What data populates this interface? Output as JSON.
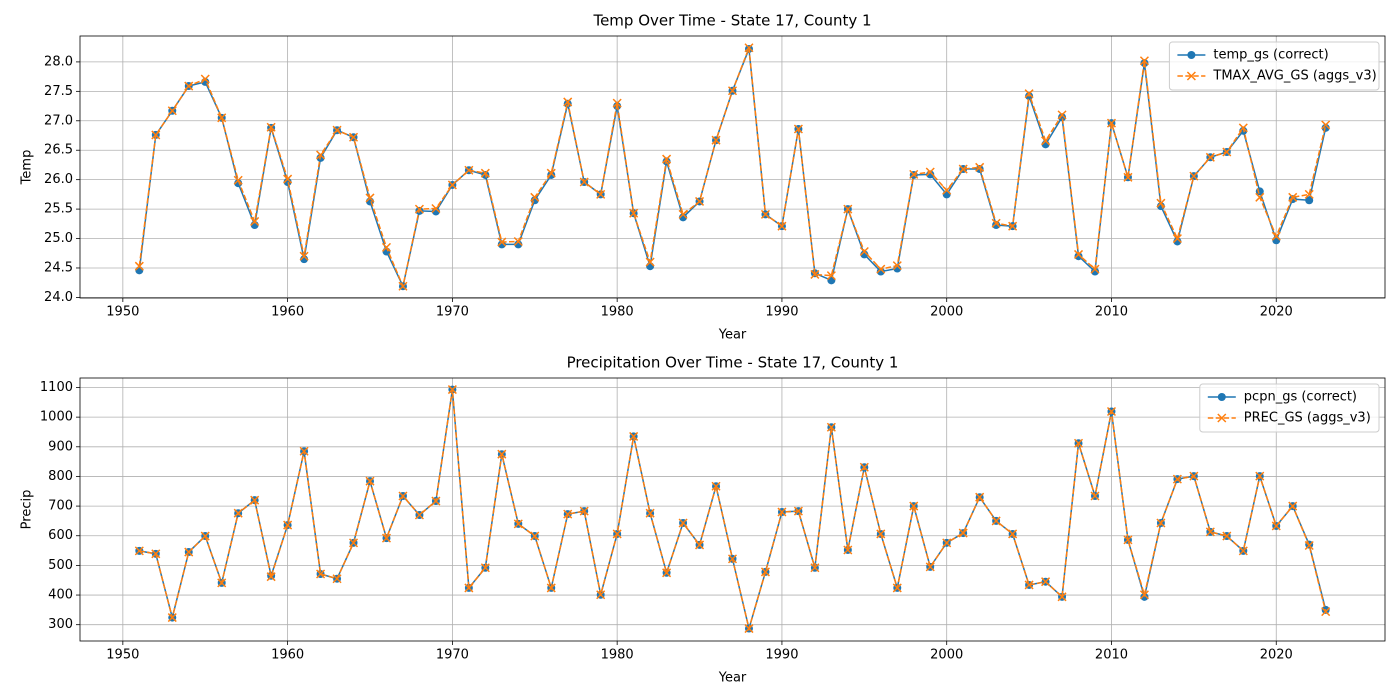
{
  "chart_data": [
    {
      "type": "line",
      "title": "Temp Over Time - State 17, County 1",
      "xlabel": "Year",
      "ylabel": "Temp",
      "x": [
        1951,
        1952,
        1953,
        1954,
        1955,
        1956,
        1957,
        1958,
        1959,
        1960,
        1961,
        1962,
        1963,
        1964,
        1965,
        1966,
        1967,
        1968,
        1969,
        1970,
        1971,
        1972,
        1973,
        1974,
        1975,
        1976,
        1977,
        1978,
        1979,
        1980,
        1981,
        1982,
        1983,
        1984,
        1985,
        1986,
        1987,
        1988,
        1989,
        1990,
        1991,
        1992,
        1993,
        1994,
        1995,
        1996,
        1997,
        1998,
        1999,
        2000,
        2001,
        2002,
        2003,
        2004,
        2005,
        2006,
        2007,
        2008,
        2009,
        2010,
        2011,
        2012,
        2013,
        2014,
        2015,
        2016,
        2017,
        2018,
        2019,
        2020,
        2021,
        2022,
        2023
      ],
      "series": [
        {
          "name": "temp_gs (correct)",
          "color": "#1f77b4",
          "marker": "o",
          "linestyle": "solid",
          "values": [
            24.46,
            26.76,
            27.17,
            27.59,
            27.66,
            27.05,
            25.94,
            25.23,
            26.88,
            25.96,
            24.65,
            26.37,
            26.84,
            26.72,
            25.63,
            24.78,
            24.19,
            25.47,
            25.46,
            25.91,
            26.16,
            26.08,
            24.9,
            24.9,
            25.65,
            26.08,
            27.29,
            25.96,
            25.75,
            27.25,
            25.43,
            24.53,
            26.31,
            25.36,
            25.63,
            26.67,
            27.51,
            28.22,
            25.41,
            25.21,
            26.86,
            24.41,
            24.29,
            25.5,
            24.73,
            24.44,
            24.49,
            26.08,
            26.09,
            25.75,
            26.18,
            26.18,
            25.23,
            25.21,
            27.42,
            26.6,
            27.06,
            24.7,
            24.44,
            26.96,
            26.04,
            27.98,
            25.55,
            24.95,
            26.06,
            26.38,
            26.47,
            26.83,
            25.8,
            24.97,
            25.67,
            25.65,
            26.88
          ]
        },
        {
          "name": "TMAX_AVG_GS (aggs_v3)",
          "color": "#ff7f0e",
          "marker": "x",
          "linestyle": "dashed",
          "values": [
            24.53,
            26.76,
            27.17,
            27.59,
            27.71,
            27.05,
            25.99,
            25.29,
            26.89,
            26.01,
            24.7,
            26.42,
            26.84,
            26.72,
            25.69,
            24.85,
            24.19,
            25.5,
            25.51,
            25.91,
            26.16,
            26.11,
            24.94,
            24.95,
            25.7,
            26.11,
            27.32,
            25.96,
            25.75,
            27.3,
            25.43,
            24.6,
            26.35,
            25.41,
            25.63,
            26.67,
            27.51,
            28.24,
            25.41,
            25.21,
            26.86,
            24.39,
            24.37,
            25.5,
            24.78,
            24.48,
            24.54,
            26.09,
            26.13,
            25.82,
            26.18,
            26.21,
            25.26,
            25.21,
            27.46,
            26.66,
            27.1,
            24.73,
            24.48,
            26.96,
            26.04,
            28.02,
            25.6,
            25.0,
            26.06,
            26.38,
            26.47,
            26.88,
            25.7,
            25.04,
            25.7,
            25.75,
            26.93
          ]
        }
      ],
      "xlim": [
        1947.4,
        2026.6
      ],
      "ylim": [
        23.99,
        28.44
      ],
      "xticks": [
        1950,
        1960,
        1970,
        1980,
        1990,
        2000,
        2010,
        2020
      ],
      "yticks": [
        {
          "value": 24,
          "label": "24.0"
        },
        24.5,
        {
          "value": 25,
          "label": "25.0"
        },
        25.5,
        {
          "value": 26,
          "label": "26.0"
        },
        26.5,
        {
          "value": 27,
          "label": "27.0"
        },
        27.5,
        {
          "value": 28,
          "label": "28.0"
        }
      ],
      "grid": true,
      "legend": "upper right"
    },
    {
      "type": "line",
      "title": "Precipitation Over Time - State 17, County 1",
      "xlabel": "Year",
      "ylabel": "Precip",
      "x": [
        1951,
        1952,
        1953,
        1954,
        1955,
        1956,
        1957,
        1958,
        1959,
        1960,
        1961,
        1962,
        1963,
        1964,
        1965,
        1966,
        1967,
        1968,
        1969,
        1970,
        1971,
        1972,
        1973,
        1974,
        1975,
        1976,
        1977,
        1978,
        1979,
        1980,
        1981,
        1982,
        1983,
        1984,
        1985,
        1986,
        1987,
        1988,
        1989,
        1990,
        1991,
        1992,
        1993,
        1994,
        1995,
        1996,
        1997,
        1998,
        1999,
        2000,
        2001,
        2002,
        2003,
        2004,
        2005,
        2006,
        2007,
        2008,
        2009,
        2010,
        2011,
        2012,
        2013,
        2014,
        2015,
        2016,
        2017,
        2018,
        2019,
        2020,
        2021,
        2022,
        2023
      ],
      "series": [
        {
          "name": "pcpn_gs (correct)",
          "color": "#1f77b4",
          "marker": "o",
          "linestyle": "solid",
          "values": [
            549,
            539,
            324,
            545,
            599,
            441,
            676,
            720,
            465,
            636,
            885,
            471,
            455,
            576,
            784,
            592,
            734,
            670,
            717,
            1093,
            424,
            492,
            875,
            640,
            599,
            424,
            673,
            683,
            401,
            606,
            935,
            676,
            475,
            643,
            569,
            767,
            522,
            287,
            478,
            680,
            683,
            492,
            966,
            552,
            831,
            606,
            424,
            700,
            495,
            576,
            609,
            730,
            650,
            606,
            434,
            445,
            394,
            912,
            734,
            1019,
            586,
            394,
            643,
            791,
            801,
            613,
            599,
            549,
            801,
            633,
            700,
            570,
            350
          ]
        },
        {
          "name": "PREC_GS (aggs_v3)",
          "color": "#ff7f0e",
          "marker": "x",
          "linestyle": "dashed",
          "values": [
            549,
            539,
            324,
            545,
            599,
            441,
            676,
            720,
            462,
            636,
            885,
            471,
            455,
            576,
            784,
            592,
            734,
            670,
            717,
            1093,
            424,
            492,
            875,
            640,
            599,
            424,
            673,
            683,
            401,
            606,
            935,
            676,
            475,
            643,
            569,
            767,
            522,
            287,
            478,
            680,
            683,
            492,
            966,
            552,
            831,
            606,
            424,
            700,
            495,
            576,
            609,
            730,
            650,
            606,
            434,
            445,
            394,
            912,
            734,
            1019,
            586,
            401,
            643,
            791,
            801,
            613,
            599,
            549,
            801,
            633,
            700,
            567,
            344
          ]
        }
      ],
      "xlim": [
        1947.4,
        2026.6
      ],
      "ylim": [
        245,
        1132
      ],
      "xticks": [
        1950,
        1960,
        1970,
        1980,
        1990,
        2000,
        2010,
        2020
      ],
      "yticks": [
        300,
        400,
        500,
        600,
        700,
        800,
        900,
        1000,
        1100
      ],
      "grid": true,
      "legend": "upper right"
    }
  ]
}
